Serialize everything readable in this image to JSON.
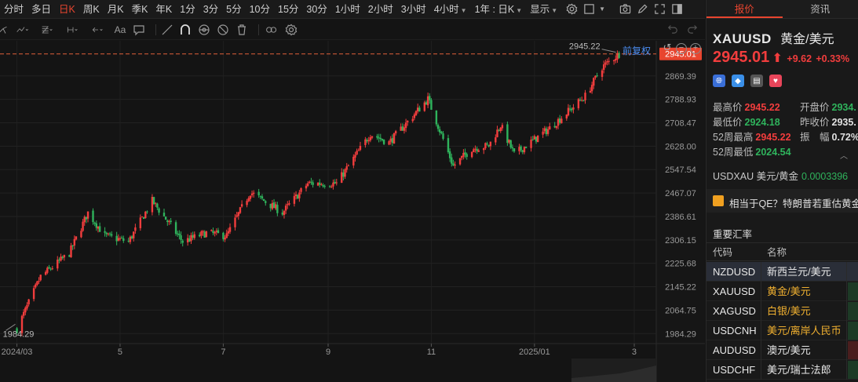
{
  "toolbar": {
    "periods": [
      {
        "label": "分时",
        "active": false
      },
      {
        "label": "多日",
        "active": false
      },
      {
        "label": "日K",
        "active": true
      },
      {
        "label": "周K",
        "active": false
      },
      {
        "label": "月K",
        "active": false
      },
      {
        "label": "季K",
        "active": false
      },
      {
        "label": "年K",
        "active": false
      },
      {
        "label": "1分",
        "active": false
      },
      {
        "label": "3分",
        "active": false
      },
      {
        "label": "5分",
        "active": false
      },
      {
        "label": "10分",
        "active": false
      },
      {
        "label": "15分",
        "active": false
      },
      {
        "label": "30分",
        "active": false
      },
      {
        "label": "1小时",
        "active": false
      },
      {
        "label": "2小时",
        "active": false
      },
      {
        "label": "3小时",
        "active": false
      }
    ],
    "more_period": "4小时",
    "range_select": "1年 : 日K",
    "display_label": "显示",
    "icons": [
      "settings-icon",
      "square-icon",
      "camera-icon",
      "pencil-icon",
      "expand-icon",
      "sidebar-icon"
    ]
  },
  "drawbar": {
    "text_tool": "Aa",
    "icons": [
      "fork-line-icon",
      "zigzag-icon",
      "fib-icon",
      "measure-icon",
      "arrow-icon",
      "comment-icon",
      "line-icon",
      "magnet-icon",
      "eye-icon",
      "hide-icon",
      "trash-icon",
      "link-icon",
      "gear-icon"
    ]
  },
  "chart": {
    "restore_label": "前复权",
    "accent_up": "#f23d3d",
    "accent_down": "#2fb35c",
    "current_price_label": "2945.01",
    "high_marker": "2945.22",
    "low_marker": "1984.29"
  },
  "chart_data": {
    "type": "candlestick",
    "y_ticks": [
      2869.39,
      2788.93,
      2708.47,
      2628.0,
      2547.54,
      2467.07,
      2386.61,
      2306.15,
      2225.68,
      2145.22,
      2064.75,
      1984.29
    ],
    "x_ticks": [
      "2024/03",
      "5",
      "7",
      "9",
      "11",
      "2025/01",
      "3"
    ],
    "ylim": [
      1950,
      2990
    ],
    "current_price": 2945.01,
    "high": 2945.22,
    "low": 1984.29,
    "close_path": [
      [
        "2024-03-01",
        2000
      ],
      [
        "2024-03-15",
        2180
      ],
      [
        "2024-04-01",
        2260
      ],
      [
        "2024-04-12",
        2400
      ],
      [
        "2024-04-22",
        2320
      ],
      [
        "2024-05-06",
        2300
      ],
      [
        "2024-05-20",
        2440
      ],
      [
        "2024-06-07",
        2300
      ],
      [
        "2024-06-21",
        2330
      ],
      [
        "2024-07-03",
        2320
      ],
      [
        "2024-07-17",
        2470
      ],
      [
        "2024-08-05",
        2400
      ],
      [
        "2024-08-20",
        2500
      ],
      [
        "2024-09-06",
        2500
      ],
      [
        "2024-09-26",
        2670
      ],
      [
        "2024-10-07",
        2640
      ],
      [
        "2024-10-30",
        2790
      ],
      [
        "2024-11-14",
        2560
      ],
      [
        "2024-11-25",
        2620
      ],
      [
        "2024-12-05",
        2630
      ],
      [
        "2024-12-12",
        2700
      ],
      [
        "2024-12-20",
        2600
      ],
      [
        "2025-01-10",
        2690
      ],
      [
        "2025-01-31",
        2800
      ],
      [
        "2025-02-10",
        2900
      ],
      [
        "2025-02-20",
        2945
      ]
    ]
  },
  "panel": {
    "tabs": [
      {
        "label": "报价",
        "active": true
      },
      {
        "label": "资讯",
        "active": false
      }
    ],
    "symbol": "XAUUSD",
    "name": "黄金/美元",
    "price": "2945.01",
    "change": "+9.62",
    "change_pct": "+0.33%",
    "stats_left": [
      {
        "label": "最高价",
        "value": "2945.22",
        "dir": "up"
      },
      {
        "label": "最低价",
        "value": "2924.18",
        "dir": "dn"
      },
      {
        "label": "52周最高",
        "value": "2945.22",
        "dir": "up"
      },
      {
        "label": "52周最低",
        "value": "2024.54",
        "dir": "dn"
      }
    ],
    "stats_right": [
      {
        "label": "开盘价",
        "value": "2934.",
        "dir": "dn"
      },
      {
        "label": "昨收价",
        "value": "2935.",
        "dir": "flat"
      },
      {
        "label": "振　幅",
        "value": "0.72%",
        "dir": "flat"
      }
    ],
    "inverse_label": "USDXAU 美元/黄金",
    "inverse_value": "0.0003396",
    "news": "相当于QE？特朗普若重估黄金",
    "rates_title": "重要汇率",
    "rates_headers": [
      "代码",
      "名称"
    ],
    "rates": [
      {
        "code": "NZDUSD",
        "name": "新西兰元/美元",
        "name_color": "#e8e8e8",
        "tint": "#2a2e38"
      },
      {
        "code": "XAUUSD",
        "name": "黄金/美元",
        "name_color": "#f0b030",
        "tint": "#1d3a26"
      },
      {
        "code": "XAGUSD",
        "name": "白银/美元",
        "name_color": "#f0b030",
        "tint": "#1d3a26"
      },
      {
        "code": "USDCNH",
        "name": "美元/离岸人民币",
        "name_color": "#f0b030",
        "tint": "#1d3a26"
      },
      {
        "code": "AUDUSD",
        "name": "澳元/美元",
        "name_color": "#e8e8e8",
        "tint": "#4a1e1e"
      },
      {
        "code": "USDCHF",
        "name": "美元/瑞士法郎",
        "name_color": "#e8e8e8",
        "tint": "#1d3a26"
      }
    ]
  }
}
